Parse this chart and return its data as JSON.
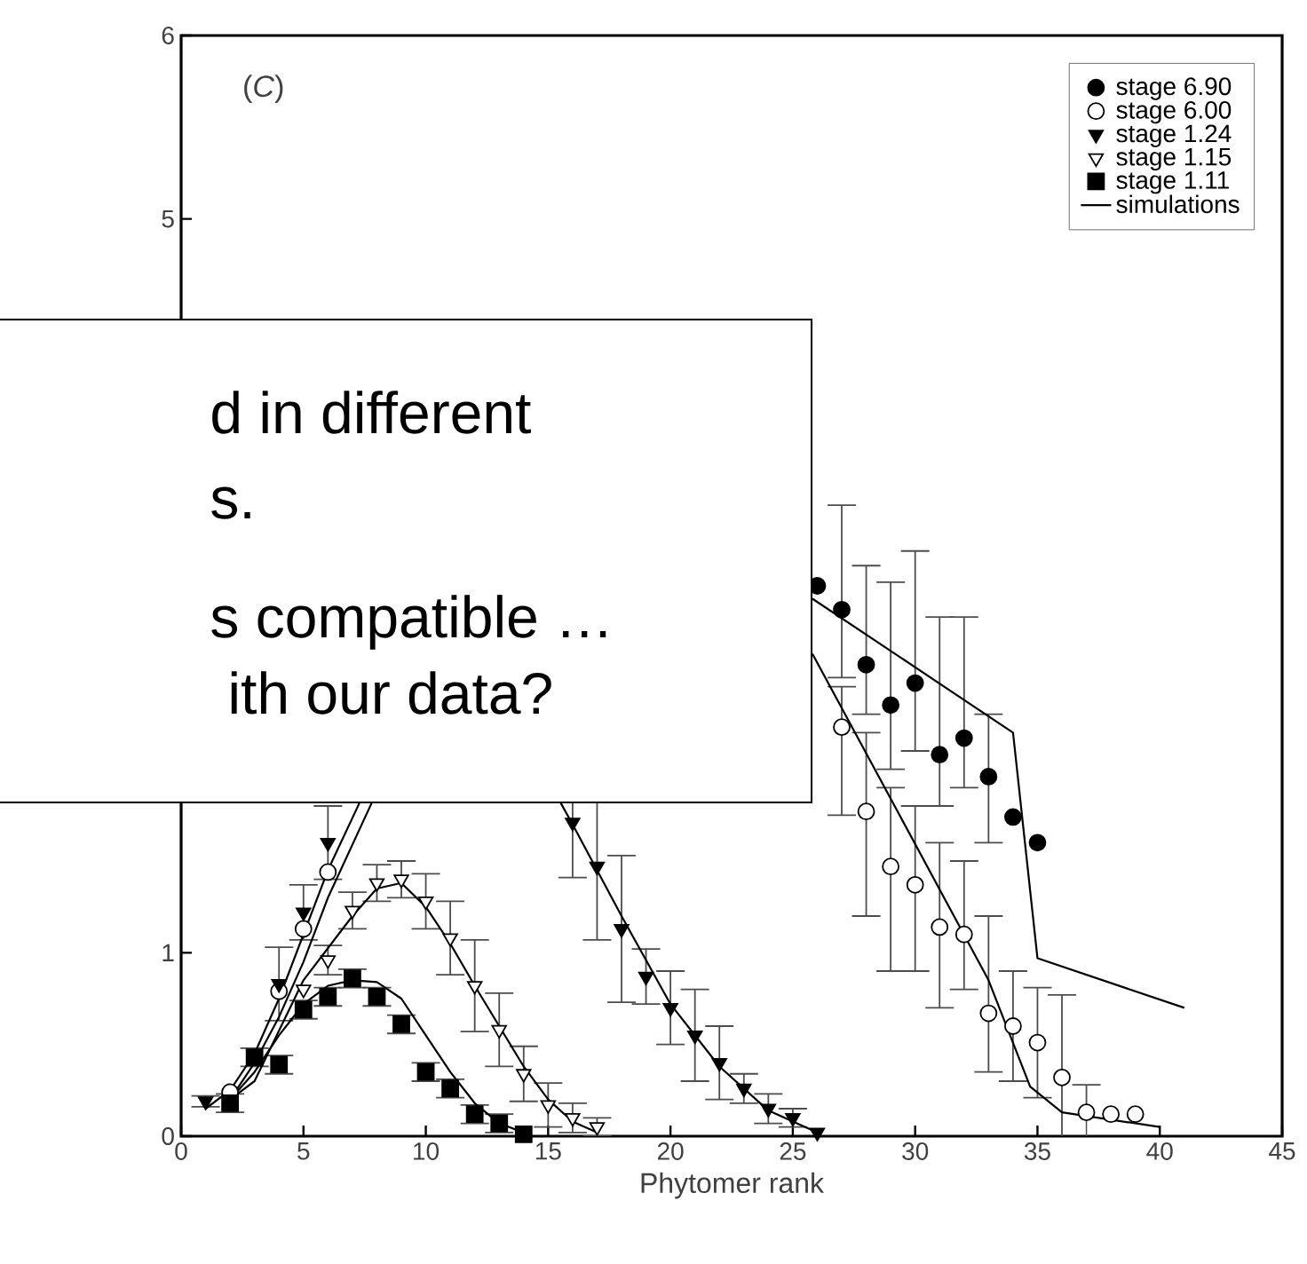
{
  "chart_data": {
    "type": "scatter",
    "xlabel": "Phytomer rank",
    "annotations": [
      "(*C*)",
      "d in different",
      "s.",
      "s compatible …",
      "ith our data?"
    ],
    "xlim": [
      0,
      45
    ],
    "xticks": [
      0,
      5,
      10,
      15,
      20,
      25,
      30,
      35,
      40,
      45
    ],
    "ylim": [
      0,
      6
    ],
    "yticks": [
      0,
      1,
      5,
      6
    ],
    "legend": "top right",
    "series": [
      {
        "name": "stage 6.90",
        "color": "#000000",
        "marker": "circle",
        "x": [
          26,
          27,
          28,
          29,
          30,
          31,
          32,
          33,
          34,
          35
        ],
        "values": [
          3.0,
          2.87,
          2.57,
          2.35,
          2.47,
          2.08,
          2.17,
          1.96,
          1.74,
          1.6
        ],
        "errors": [
          null,
          [
            2.5,
            3.44
          ],
          [
            2.3,
            3.11
          ],
          [
            2.0,
            3.02
          ],
          [
            2.1,
            3.19
          ],
          [
            1.8,
            2.83
          ],
          [
            1.9,
            2.83
          ],
          [
            1.6,
            2.3
          ],
          null,
          null
        ]
      },
      {
        "name": "stage 6.00",
        "color": "#ffffff",
        "marker": "circle",
        "x": [
          2,
          4,
          5,
          6,
          26,
          27,
          28,
          29,
          30,
          31,
          32,
          33,
          34,
          35,
          36,
          37,
          38,
          39
        ],
        "values": [
          0.24,
          0.79,
          1.13,
          1.44,
          null,
          2.23,
          1.77,
          1.47,
          1.37,
          1.14,
          1.1,
          0.67,
          0.6,
          0.51,
          0.32,
          0.13,
          0.12,
          0.12
        ],
        "errors": [
          null,
          null,
          null,
          null,
          null,
          [
            1.75,
            2.45
          ],
          [
            1.2,
            2.2
          ],
          [
            0.9,
            1.9
          ],
          [
            0.9,
            1.8
          ],
          [
            0.7,
            1.6
          ],
          [
            0.8,
            1.5
          ],
          [
            0.35,
            1.2
          ],
          0.3,
          0.3,
          0.45,
          0.15,
          null,
          null
        ]
      },
      {
        "name": "stage 1.24",
        "color": "#000000",
        "marker": "triangle",
        "x": [
          1,
          4,
          5,
          6,
          16,
          17,
          18,
          19,
          20,
          21,
          22,
          23,
          24,
          25,
          26
        ],
        "values": [
          0.19,
          0.83,
          1.22,
          1.6,
          1.71,
          1.47,
          1.13,
          0.87,
          0.7,
          0.55,
          0.4,
          0.26,
          0.15,
          0.1,
          0.02
        ],
        "errors": [
          0.03,
          0.2,
          0.15,
          0.2,
          0.3,
          0.4,
          0.4,
          0.15,
          0.2,
          0.25,
          0.2,
          0.08,
          0.08,
          0.05,
          null
        ]
      },
      {
        "name": "stage 1.15",
        "color": "#ffffff",
        "marker": "triangle",
        "x": [
          5,
          6,
          7,
          8,
          9,
          10,
          11,
          12,
          13,
          14,
          15,
          16,
          17
        ],
        "values": [
          0.8,
          0.96,
          1.23,
          1.38,
          1.4,
          1.28,
          1.08,
          0.82,
          0.58,
          0.34,
          0.17,
          0.1,
          0.05
        ],
        "errors": [
          null,
          0.08,
          0.1,
          0.1,
          0.1,
          0.15,
          0.2,
          0.25,
          0.2,
          0.15,
          0.12,
          0.08,
          0.05
        ]
      },
      {
        "name": "stage 1.11",
        "color": "#000000",
        "marker": "square",
        "x": [
          2,
          3,
          4,
          5,
          6,
          7,
          8,
          9,
          10,
          11,
          12,
          13,
          14
        ],
        "values": [
          0.18,
          0.43,
          0.39,
          0.69,
          0.76,
          0.86,
          0.76,
          0.61,
          0.35,
          0.26,
          0.12,
          0.07,
          0.01
        ],
        "errors": [
          0.05,
          0.05,
          0.05,
          0.05,
          0.05,
          0.05,
          0.05,
          0.05,
          0.05,
          0.05,
          0.05,
          0.05,
          null
        ]
      },
      {
        "name": "simulations",
        "type": "line",
        "line_style": "solid",
        "color": "#000000",
        "x": [
          2,
          3,
          4,
          5,
          6,
          7,
          8,
          9,
          10,
          11,
          12,
          13,
          14
        ],
        "values": [
          0.2,
          0.35,
          0.55,
          0.72,
          0.82,
          0.85,
          0.84,
          0.75,
          0.55,
          0.35,
          0.18,
          0.07,
          0.02
        ]
      },
      {
        "type": "line",
        "line_style": "solid",
        "color": "#000000",
        "x": [
          2,
          3,
          5,
          7,
          8,
          9,
          10,
          11,
          12,
          13,
          14,
          15,
          16,
          17
        ],
        "values": [
          0.2,
          0.3,
          0.85,
          1.2,
          1.35,
          1.38,
          1.25,
          1.05,
          0.82,
          0.6,
          0.38,
          0.2,
          0.08,
          0.02
        ]
      },
      {
        "type": "line",
        "line_style": "solid",
        "color": "#000000",
        "x": [
          1,
          2,
          3,
          4,
          5,
          6,
          7.3,
          11,
          15.5,
          16,
          18,
          20,
          22,
          24,
          26
        ],
        "values": [
          0.15,
          0.25,
          0.45,
          0.75,
          1.1,
          1.45,
          1.82,
          null,
          1.82,
          1.7,
          1.2,
          0.72,
          0.38,
          0.14,
          0.02
        ]
      },
      {
        "type": "line",
        "line_style": "solid",
        "color": "#000000",
        "x": [
          2,
          3,
          4,
          5,
          6,
          7.8,
          17,
          25.8,
          29,
          33,
          34.7,
          36,
          40
        ],
        "values": [
          0.2,
          0.4,
          0.65,
          0.95,
          1.3,
          1.82,
          null,
          2.63,
          1.84,
          0.85,
          0.27,
          0.13,
          0.05
        ]
      },
      {
        "type": "line",
        "line_style": "solid",
        "color": "#000000",
        "x": [
          25.8,
          34,
          35,
          41
        ],
        "values": [
          2.93,
          2.2,
          0.97,
          0.7
        ]
      }
    ]
  }
}
